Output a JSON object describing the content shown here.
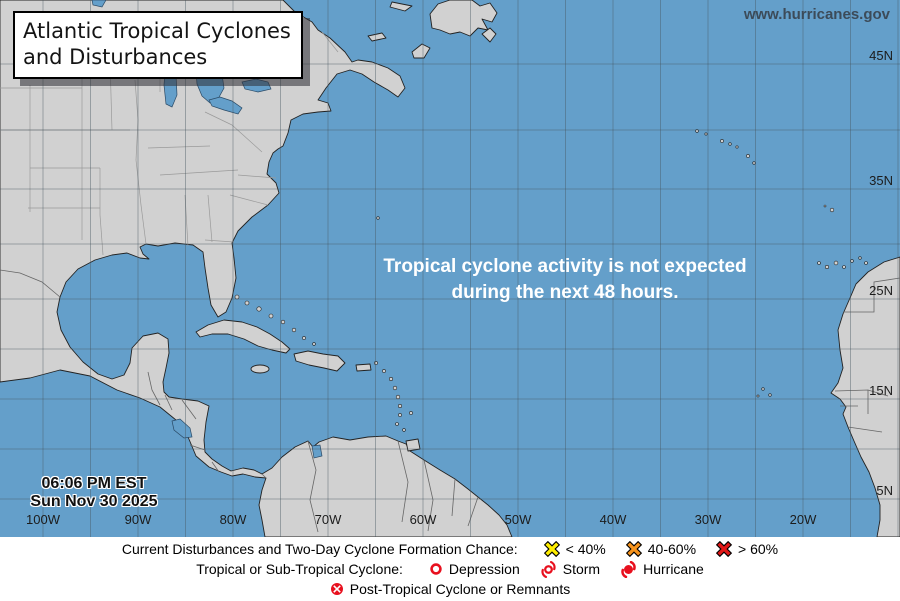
{
  "header": {
    "title_line1": "Atlantic Tropical Cyclones",
    "title_line2": "and Disturbances",
    "website": "www.hurricanes.gov"
  },
  "map": {
    "message_line1": "Tropical cyclone activity is not expected",
    "message_line2": "during the next 48 hours.",
    "timestamp_line1": "06:06 PM EST",
    "timestamp_line2": "Sun Nov 30 2025",
    "lat_labels": [
      "45N",
      "35N",
      "25N",
      "15N",
      "5N"
    ],
    "lon_labels": [
      "100W",
      "90W",
      "80W",
      "70W",
      "60W",
      "50W",
      "40W",
      "30W",
      "20W"
    ],
    "colors": {
      "ocean": "#649fca",
      "land": "#d1d1d1"
    }
  },
  "legend": {
    "row1_heading": "Current Disturbances and Two-Day Cyclone Formation Chance:",
    "row1_items": [
      {
        "label": "< 40%",
        "color": "#ffee00"
      },
      {
        "label": "40-60%",
        "color": "#f7941d"
      },
      {
        "label": "> 60%",
        "color": "#e21818"
      }
    ],
    "row2_heading": "Tropical or Sub-Tropical Cyclone:",
    "row2_items": [
      {
        "label": "Depression"
      },
      {
        "label": "Storm"
      },
      {
        "label": "Hurricane"
      }
    ],
    "row3_label": "Post-Tropical Cyclone or Remnants",
    "cyclone_red": "#e8101e"
  }
}
